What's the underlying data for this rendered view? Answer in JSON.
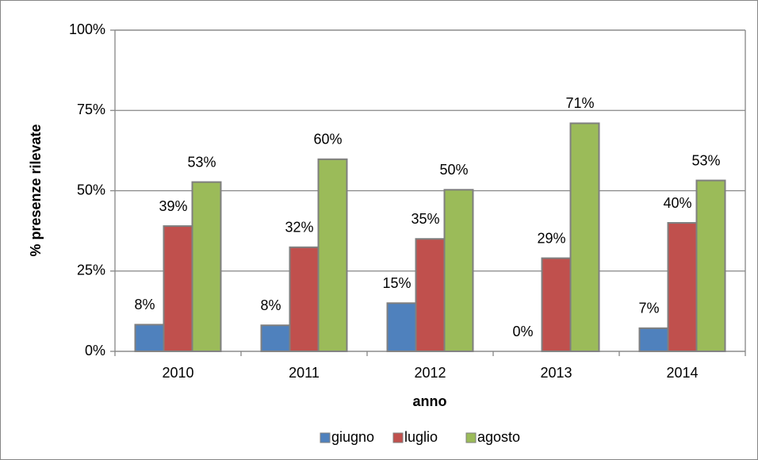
{
  "chart_data": {
    "type": "bar",
    "categories": [
      "2010",
      "2011",
      "2012",
      "2013",
      "2014"
    ],
    "series": [
      {
        "name": "giugno",
        "color": "#4f81bd",
        "values": [
          8.3,
          8.1,
          15,
          0,
          7.2
        ],
        "value_labels": [
          "8%",
          "8%",
          "15%",
          "0%",
          "7%"
        ]
      },
      {
        "name": "luglio",
        "color": "#c0504d",
        "values": [
          39,
          32.4,
          35,
          29,
          40
        ],
        "value_labels": [
          "39%",
          "32%",
          "35%",
          "29%",
          "40%"
        ]
      },
      {
        "name": "agosto",
        "color": "#9bbb59",
        "values": [
          52.7,
          59.8,
          50.3,
          71,
          53.2
        ],
        "value_labels": [
          "53%",
          "60%",
          "50%",
          "71%",
          "53%"
        ]
      }
    ],
    "ylim": [
      0,
      100
    ],
    "yticks": [
      {
        "value": 0,
        "label": "0%"
      },
      {
        "value": 25,
        "label": "25%"
      },
      {
        "value": 50,
        "label": "50%"
      },
      {
        "value": 75,
        "label": "75%"
      },
      {
        "value": 100,
        "label": "100%"
      }
    ],
    "ylabel": "% presenze rilevate",
    "xlabel": "anno",
    "grid": true,
    "legend": "bottom"
  }
}
